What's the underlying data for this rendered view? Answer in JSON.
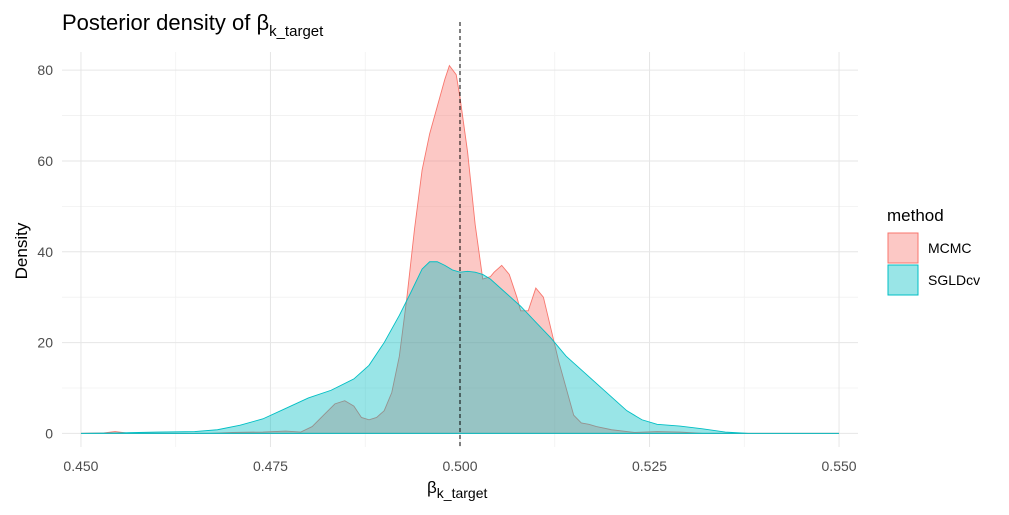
{
  "chart_data": {
    "type": "area",
    "title": "Posterior density of ",
    "title_symbol": "β",
    "title_subscript": "k_target",
    "xlabel_symbol": "β",
    "xlabel_subscript": "k_target",
    "ylabel": "Density",
    "xlim": [
      0.4475,
      0.5525
    ],
    "ylim": [
      -3,
      84
    ],
    "x_ticks": [
      0.45,
      0.475,
      0.5,
      0.525,
      0.55
    ],
    "x_tick_labels": [
      "0.450",
      "0.475",
      "0.500",
      "0.525",
      "0.550"
    ],
    "y_ticks": [
      0,
      20,
      40,
      60,
      80
    ],
    "y_tick_labels": [
      "0",
      "20",
      "40",
      "60",
      "80"
    ],
    "reference_line_x": 0.5,
    "grid": true,
    "legend": {
      "title": "method",
      "position": "right"
    },
    "series": [
      {
        "name": "MCMC",
        "fill": "#f8766d",
        "points": [
          [
            0.45,
            0
          ],
          [
            0.453,
            0.1
          ],
          [
            0.4545,
            0.4
          ],
          [
            0.456,
            0.1
          ],
          [
            0.46,
            0
          ],
          [
            0.467,
            0
          ],
          [
            0.47,
            0.2
          ],
          [
            0.474,
            0.3
          ],
          [
            0.477,
            0.5
          ],
          [
            0.479,
            0.3
          ],
          [
            0.4805,
            1.5
          ],
          [
            0.482,
            4
          ],
          [
            0.4835,
            6.5
          ],
          [
            0.4848,
            7.2
          ],
          [
            0.486,
            6
          ],
          [
            0.487,
            3.5
          ],
          [
            0.488,
            3
          ],
          [
            0.489,
            3.5
          ],
          [
            0.49,
            5
          ],
          [
            0.491,
            9
          ],
          [
            0.492,
            17
          ],
          [
            0.493,
            30
          ],
          [
            0.494,
            45
          ],
          [
            0.495,
            58
          ],
          [
            0.496,
            66
          ],
          [
            0.497,
            72
          ],
          [
            0.498,
            78
          ],
          [
            0.4986,
            81
          ],
          [
            0.4995,
            79
          ],
          [
            0.5,
            74
          ],
          [
            0.501,
            62
          ],
          [
            0.502,
            46
          ],
          [
            0.503,
            34
          ],
          [
            0.504,
            34.5
          ],
          [
            0.5045,
            35.5
          ],
          [
            0.5055,
            37
          ],
          [
            0.5065,
            35
          ],
          [
            0.5075,
            30
          ],
          [
            0.508,
            27
          ],
          [
            0.509,
            27
          ],
          [
            0.51,
            32
          ],
          [
            0.511,
            30
          ],
          [
            0.512,
            23
          ],
          [
            0.513,
            16
          ],
          [
            0.514,
            10
          ],
          [
            0.515,
            4
          ],
          [
            0.516,
            2.3
          ],
          [
            0.517,
            2
          ],
          [
            0.518,
            1.5
          ],
          [
            0.52,
            0.8
          ],
          [
            0.523,
            0.2
          ],
          [
            0.526,
            0.4
          ],
          [
            0.529,
            0.3
          ],
          [
            0.532,
            0
          ],
          [
            0.55,
            0
          ]
        ]
      },
      {
        "name": "SGLDcv",
        "fill": "#00bfc4",
        "points": [
          [
            0.45,
            0
          ],
          [
            0.455,
            0.1
          ],
          [
            0.46,
            0.3
          ],
          [
            0.465,
            0.4
          ],
          [
            0.468,
            0.8
          ],
          [
            0.471,
            1.8
          ],
          [
            0.474,
            3.2
          ],
          [
            0.477,
            5.5
          ],
          [
            0.48,
            7.8
          ],
          [
            0.483,
            9.5
          ],
          [
            0.486,
            12
          ],
          [
            0.488,
            15
          ],
          [
            0.49,
            20
          ],
          [
            0.492,
            26
          ],
          [
            0.4935,
            31
          ],
          [
            0.495,
            36.2
          ],
          [
            0.496,
            37.8
          ],
          [
            0.497,
            37.8
          ],
          [
            0.498,
            37
          ],
          [
            0.499,
            36
          ],
          [
            0.5,
            35.5
          ],
          [
            0.501,
            35.7
          ],
          [
            0.502,
            35.5
          ],
          [
            0.503,
            35
          ],
          [
            0.504,
            34
          ],
          [
            0.506,
            31
          ],
          [
            0.508,
            28
          ],
          [
            0.51,
            24.5
          ],
          [
            0.512,
            21
          ],
          [
            0.514,
            17
          ],
          [
            0.516,
            14
          ],
          [
            0.518,
            11
          ],
          [
            0.52,
            8
          ],
          [
            0.522,
            5
          ],
          [
            0.524,
            3
          ],
          [
            0.526,
            2
          ],
          [
            0.529,
            1.6
          ],
          [
            0.532,
            1
          ],
          [
            0.535,
            0.3
          ],
          [
            0.538,
            0
          ],
          [
            0.55,
            0
          ]
        ]
      }
    ]
  }
}
